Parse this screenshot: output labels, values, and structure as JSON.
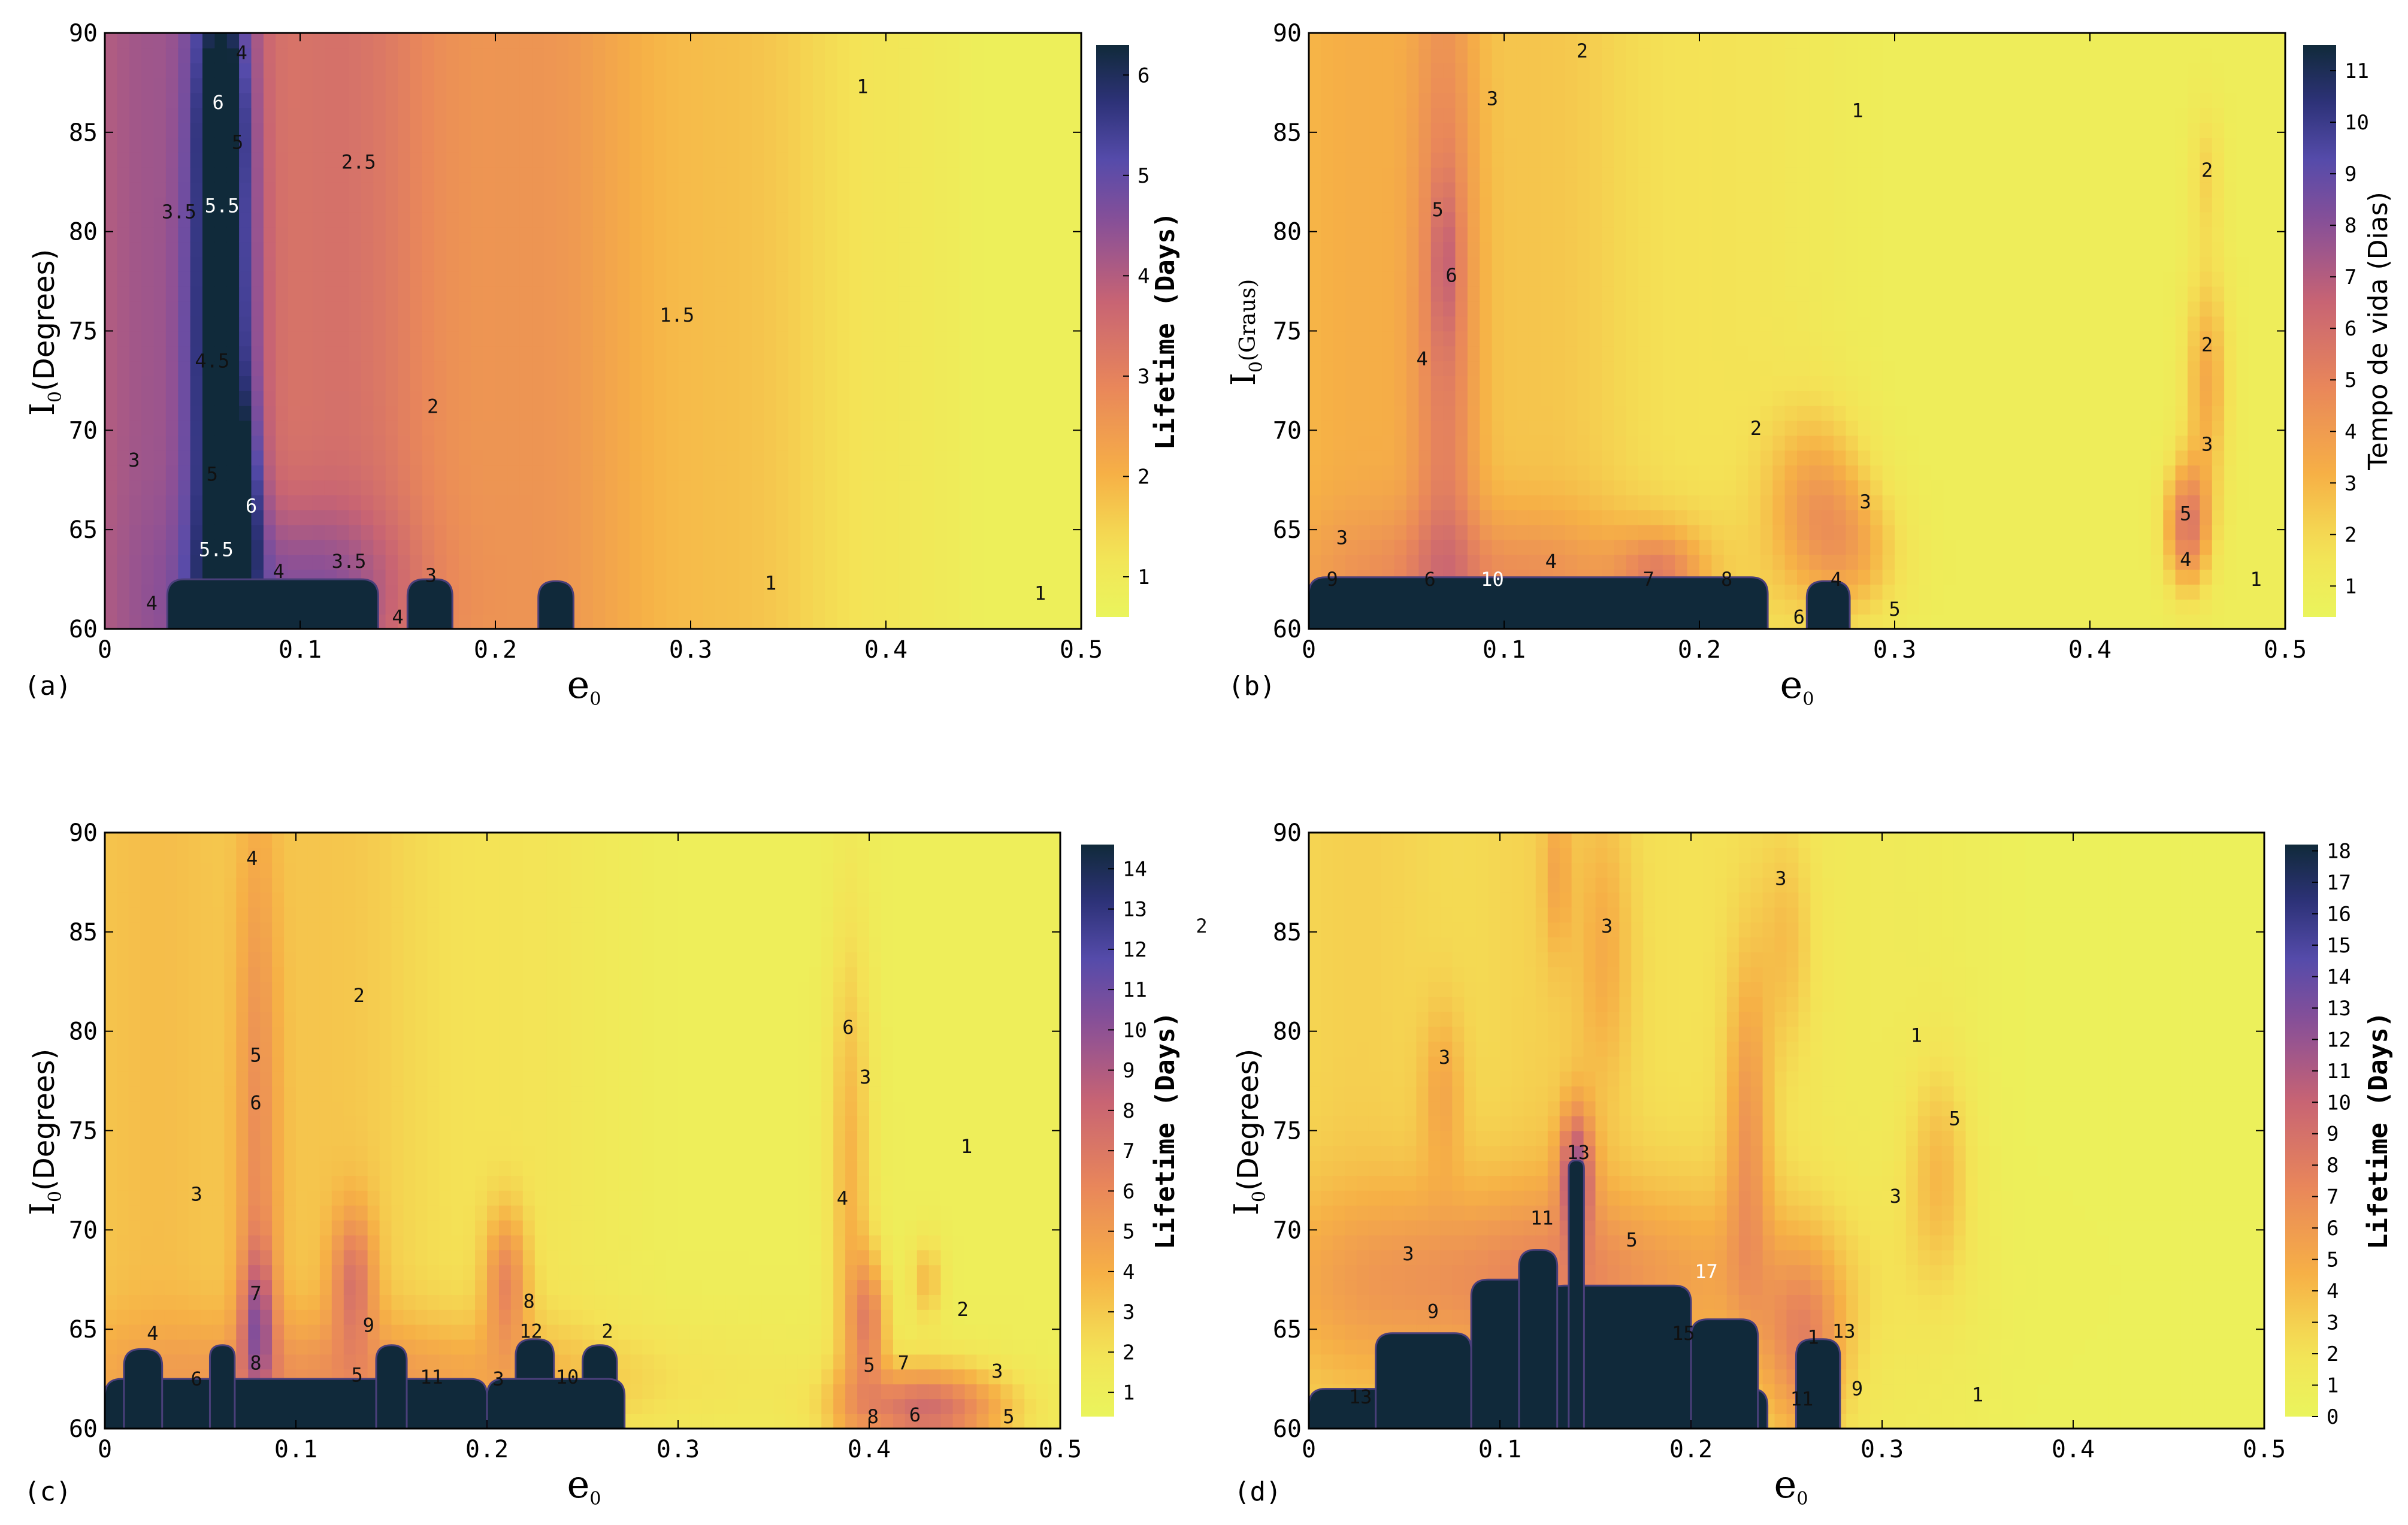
{
  "chart_data": [
    {
      "panel_label": "(a)",
      "type": "heatmap",
      "title": "",
      "xlabel": "e",
      "xlabel_sub": "0",
      "ylabel_prefix": "I",
      "ylabel_sub": "0",
      "ylabel_suffix": "(Degrees)",
      "xlim": [
        0,
        0.5
      ],
      "ylim": [
        60,
        90
      ],
      "x_ticks": [
        0,
        0.1,
        0.2,
        0.3,
        0.4,
        0.5
      ],
      "x_tick_labels": [
        "0",
        "0.1",
        "0.2",
        "0.3",
        "0.4",
        "0.5"
      ],
      "y_ticks": [
        60,
        65,
        70,
        75,
        80,
        85,
        90
      ],
      "y_tick_labels": [
        "60",
        "65",
        "70",
        "75",
        "80",
        "85",
        "90"
      ],
      "colorbar": {
        "label": "Lifetime (Days)",
        "min": 0.6,
        "max": 6.3,
        "ticks": [
          1,
          2,
          3,
          4,
          5,
          6
        ],
        "tick_labels": [
          "1",
          "2",
          "3",
          "4",
          "5",
          "6"
        ]
      },
      "lobes": [
        {
          "x": 0.06,
          "y": 75,
          "sx": 0.012,
          "sy": 20,
          "v": 3.2
        },
        {
          "x": 0.06,
          "y": 85.5,
          "sx": 0.006,
          "sy": 2.4,
          "v": 2.2
        },
        {
          "x": 0.07,
          "y": 66,
          "sx": 0.006,
          "sy": 3.5,
          "v": 2.2
        },
        {
          "x": 0.1,
          "y": 62,
          "sx": 0.04,
          "sy": 3,
          "v": 1.2
        }
      ],
      "base": {
        "left": 4.0,
        "right": 0.8,
        "slope_start": 0.02,
        "slope_end": 0.45
      },
      "black_regions": [
        {
          "x0": 0.032,
          "x1": 0.14,
          "ytop": 62.5
        },
        {
          "x0": 0.155,
          "x1": 0.178,
          "ytop": 62.5
        },
        {
          "x0": 0.222,
          "x1": 0.24,
          "ytop": 62.4
        }
      ],
      "contour_labels": [
        {
          "x": 0.07,
          "y": 89,
          "text": "4"
        },
        {
          "x": 0.058,
          "y": 86.5,
          "text": "6"
        },
        {
          "x": 0.068,
          "y": 84.5,
          "text": "5"
        },
        {
          "x": 0.038,
          "y": 81,
          "text": "3.5"
        },
        {
          "x": 0.06,
          "y": 81.3,
          "text": "5.5"
        },
        {
          "x": 0.13,
          "y": 83.5,
          "text": "2.5"
        },
        {
          "x": 0.055,
          "y": 73.5,
          "text": "4.5"
        },
        {
          "x": 0.055,
          "y": 67.8,
          "text": "5"
        },
        {
          "x": 0.075,
          "y": 66.2,
          "text": "6"
        },
        {
          "x": 0.057,
          "y": 64,
          "text": "5.5"
        },
        {
          "x": 0.015,
          "y": 68.5,
          "text": "3"
        },
        {
          "x": 0.024,
          "y": 61.3,
          "text": "4"
        },
        {
          "x": 0.089,
          "y": 62.9,
          "text": "4"
        },
        {
          "x": 0.125,
          "y": 63.4,
          "text": "3.5"
        },
        {
          "x": 0.167,
          "y": 62.7,
          "text": "3"
        },
        {
          "x": 0.15,
          "y": 60.6,
          "text": "4"
        },
        {
          "x": 0.168,
          "y": 71.2,
          "text": "2"
        },
        {
          "x": 0.293,
          "y": 75.8,
          "text": "1.5"
        },
        {
          "x": 0.388,
          "y": 87.3,
          "text": "1"
        },
        {
          "x": 0.341,
          "y": 62.3,
          "text": "1"
        },
        {
          "x": 0.479,
          "y": 61.8,
          "text": "1"
        }
      ]
    },
    {
      "panel_label": "(b)",
      "type": "heatmap",
      "title": "",
      "xlabel": "e",
      "xlabel_sub": "0",
      "ylabel_prefix": "I",
      "ylabel_sub": "0",
      "ylabel_suffix": "(Graus)",
      "xlim": [
        0,
        0.5
      ],
      "ylim": [
        60,
        90
      ],
      "x_ticks": [
        0,
        0.1,
        0.2,
        0.3,
        0.4,
        0.5
      ],
      "x_tick_labels": [
        "0",
        "0.1",
        "0.2",
        "0.3",
        "0.4",
        "0.5"
      ],
      "y_ticks": [
        60,
        65,
        70,
        75,
        80,
        85,
        90
      ],
      "y_tick_labels": [
        "60",
        "65",
        "70",
        "75",
        "80",
        "85",
        "90"
      ],
      "colorbar": {
        "label": "Tempo de vida (Dias)",
        "min": 0.4,
        "max": 11.5,
        "ticks": [
          1,
          2,
          3,
          4,
          5,
          6,
          7,
          8,
          9,
          10,
          11
        ],
        "tick_labels": [
          "1",
          "2",
          "3",
          "4",
          "5",
          "6",
          "7",
          "8",
          "9",
          "10",
          "11"
        ]
      },
      "lobes": [
        {
          "x": 0.07,
          "y": 75,
          "sx": 0.012,
          "sy": 16,
          "v": 2.6
        },
        {
          "x": 0.07,
          "y": 78.5,
          "sx": 0.005,
          "sy": 2.8,
          "v": 1.5
        },
        {
          "x": 0.26,
          "y": 66.5,
          "sx": 0.018,
          "sy": 3.2,
          "v": 2.5
        },
        {
          "x": 0.28,
          "y": 63.8,
          "sx": 0.018,
          "sy": 2.4,
          "v": 1.8
        },
        {
          "x": 0.18,
          "y": 62.8,
          "sx": 0.015,
          "sy": 1.5,
          "v": 2.5
        },
        {
          "x": 0.46,
          "y": 72.5,
          "sx": 0.008,
          "sy": 4,
          "v": 2.5
        },
        {
          "x": 0.45,
          "y": 65.2,
          "sx": 0.008,
          "sy": 2.2,
          "v": 4.5
        },
        {
          "x": 0.46,
          "y": 83,
          "sx": 0.006,
          "sy": 2.5,
          "v": 1.2
        },
        {
          "x": 0.1,
          "y": 62.5,
          "sx": 0.07,
          "sy": 2.5,
          "v": 2.0
        }
      ],
      "base": {
        "left": 3.0,
        "right": 0.9,
        "slope_start": 0.05,
        "slope_end": 0.3
      },
      "black_regions": [
        {
          "x0": 0.0,
          "x1": 0.235,
          "ytop": 62.6
        },
        {
          "x0": 0.255,
          "x1": 0.277,
          "ytop": 62.4
        }
      ],
      "contour_labels": [
        {
          "x": 0.14,
          "y": 89.1,
          "text": "2"
        },
        {
          "x": 0.094,
          "y": 86.7,
          "text": "3"
        },
        {
          "x": 0.281,
          "y": 86.1,
          "text": "1"
        },
        {
          "x": 0.066,
          "y": 81.1,
          "text": "5"
        },
        {
          "x": 0.073,
          "y": 77.8,
          "text": "6"
        },
        {
          "x": 0.058,
          "y": 73.6,
          "text": "4"
        },
        {
          "x": 0.46,
          "y": 83.1,
          "text": "2"
        },
        {
          "x": 0.46,
          "y": 74.3,
          "text": "2"
        },
        {
          "x": 0.229,
          "y": 70.1,
          "text": "2"
        },
        {
          "x": 0.46,
          "y": 69.3,
          "text": "3"
        },
        {
          "x": 0.285,
          "y": 66.4,
          "text": "3"
        },
        {
          "x": 0.449,
          "y": 65.8,
          "text": "5"
        },
        {
          "x": 0.449,
          "y": 63.5,
          "text": "4"
        },
        {
          "x": 0.017,
          "y": 64.6,
          "text": "3"
        },
        {
          "x": 0.012,
          "y": 62.5,
          "text": "9"
        },
        {
          "x": 0.062,
          "y": 62.5,
          "text": "6"
        },
        {
          "x": 0.094,
          "y": 62.5,
          "text": "10"
        },
        {
          "x": 0.124,
          "y": 63.4,
          "text": "4"
        },
        {
          "x": 0.174,
          "y": 62.5,
          "text": "7"
        },
        {
          "x": 0.214,
          "y": 62.5,
          "text": "8"
        },
        {
          "x": 0.27,
          "y": 62.5,
          "text": "4"
        },
        {
          "x": 0.251,
          "y": 60.6,
          "text": "6"
        },
        {
          "x": 0.3,
          "y": 61,
          "text": "5"
        },
        {
          "x": 0.485,
          "y": 62.5,
          "text": "1"
        }
      ]
    },
    {
      "panel_label": "(c)",
      "type": "heatmap",
      "title": "",
      "xlabel": "e",
      "xlabel_sub": "0",
      "ylabel_prefix": "I",
      "ylabel_sub": "0",
      "ylabel_suffix": "(Degrees)",
      "xlim": [
        0,
        0.5
      ],
      "ylim": [
        60,
        90
      ],
      "x_ticks": [
        0,
        0.1,
        0.2,
        0.3,
        0.4,
        0.5
      ],
      "x_tick_labels": [
        "0",
        "0.1",
        "0.2",
        "0.3",
        "0.4",
        "0.5"
      ],
      "y_ticks": [
        60,
        65,
        70,
        75,
        80,
        85,
        90
      ],
      "y_tick_labels": [
        "60",
        "65",
        "70",
        "75",
        "80",
        "85",
        "90"
      ],
      "colorbar": {
        "label": "Lifetime (Days)",
        "min": 0.4,
        "max": 14.6,
        "ticks": [
          1,
          2,
          3,
          4,
          5,
          6,
          7,
          8,
          9,
          10,
          11,
          12,
          13,
          14
        ],
        "tick_labels": [
          "1",
          "2",
          "3",
          "4",
          "5",
          "6",
          "7",
          "8",
          "9",
          "10",
          "11",
          "12",
          "13",
          "14"
        ]
      },
      "lobes": [
        {
          "x": 0.08,
          "y": 74,
          "sx": 0.008,
          "sy": 12,
          "v": 2.8
        },
        {
          "x": 0.08,
          "y": 65.5,
          "sx": 0.006,
          "sy": 2.5,
          "v": 4.5
        },
        {
          "x": 0.13,
          "y": 67.5,
          "sx": 0.008,
          "sy": 2.5,
          "v": 4
        },
        {
          "x": 0.21,
          "y": 67.5,
          "sx": 0.008,
          "sy": 2.5,
          "v": 4
        },
        {
          "x": 0.39,
          "y": 73,
          "sx": 0.008,
          "sy": 9,
          "v": 2.8
        },
        {
          "x": 0.4,
          "y": 65.5,
          "sx": 0.007,
          "sy": 2.3,
          "v": 4.5
        },
        {
          "x": 0.43,
          "y": 67.5,
          "sx": 0.006,
          "sy": 1.5,
          "v": 2.5
        },
        {
          "x": 0.43,
          "y": 61,
          "sx": 0.03,
          "sy": 1.5,
          "v": 6.5
        },
        {
          "x": 0.15,
          "y": 62.5,
          "sx": 0.12,
          "sy": 2.2,
          "v": 2.5
        }
      ],
      "base": {
        "left": 3.2,
        "right": 1.0,
        "slope_start": 0.1,
        "slope_end": 0.3
      },
      "black_regions": [
        {
          "x0": 0.0,
          "x1": 0.2,
          "ytop": 62.5
        },
        {
          "x0": 0.01,
          "x1": 0.03,
          "ytop": 64.0
        },
        {
          "x0": 0.055,
          "x1": 0.068,
          "ytop": 64.2
        },
        {
          "x0": 0.142,
          "x1": 0.158,
          "ytop": 64.2
        },
        {
          "x0": 0.215,
          "x1": 0.235,
          "ytop": 64.5
        },
        {
          "x0": 0.25,
          "x1": 0.268,
          "ytop": 64.2
        },
        {
          "x0": 0.2,
          "x1": 0.272,
          "ytop": 62.5
        }
      ],
      "contour_labels": [
        {
          "x": 0.077,
          "y": 88.7,
          "text": "4"
        },
        {
          "x": 0.574,
          "y": 85.3,
          "text": "2"
        },
        {
          "x": 0.133,
          "y": 81.8,
          "text": "2"
        },
        {
          "x": 0.079,
          "y": 78.8,
          "text": "5"
        },
        {
          "x": 0.079,
          "y": 76.4,
          "text": "6"
        },
        {
          "x": 0.389,
          "y": 80.2,
          "text": "6"
        },
        {
          "x": 0.398,
          "y": 77.7,
          "text": "3"
        },
        {
          "x": 0.451,
          "y": 74.2,
          "text": "1"
        },
        {
          "x": 0.048,
          "y": 71.8,
          "text": "3"
        },
        {
          "x": 0.386,
          "y": 71.6,
          "text": "4"
        },
        {
          "x": 0.079,
          "y": 66.8,
          "text": "7"
        },
        {
          "x": 0.138,
          "y": 65.2,
          "text": "9"
        },
        {
          "x": 0.222,
          "y": 66.4,
          "text": "8"
        },
        {
          "x": 0.449,
          "y": 66,
          "text": "2"
        },
        {
          "x": 0.025,
          "y": 64.8,
          "text": "4"
        },
        {
          "x": 0.223,
          "y": 64.9,
          "text": "12"
        },
        {
          "x": 0.263,
          "y": 64.9,
          "text": "2"
        },
        {
          "x": 0.079,
          "y": 63.3,
          "text": "8"
        },
        {
          "x": 0.048,
          "y": 62.5,
          "text": "6"
        },
        {
          "x": 0.132,
          "y": 62.7,
          "text": "5"
        },
        {
          "x": 0.171,
          "y": 62.6,
          "text": "11"
        },
        {
          "x": 0.206,
          "y": 62.5,
          "text": "3"
        },
        {
          "x": 0.242,
          "y": 62.6,
          "text": "10"
        },
        {
          "x": 0.4,
          "y": 63.2,
          "text": "5"
        },
        {
          "x": 0.418,
          "y": 63.3,
          "text": "7"
        },
        {
          "x": 0.467,
          "y": 62.9,
          "text": "3"
        },
        {
          "x": 0.402,
          "y": 60.6,
          "text": "8"
        },
        {
          "x": 0.424,
          "y": 60.7,
          "text": "6"
        },
        {
          "x": 0.473,
          "y": 60.6,
          "text": "5"
        }
      ]
    },
    {
      "panel_label": "(d)",
      "type": "heatmap",
      "title": "",
      "xlabel": "e",
      "xlabel_sub": "0",
      "ylabel_prefix": "I",
      "ylabel_sub": "0",
      "ylabel_suffix": "(Degrees)",
      "xlim": [
        0,
        0.5
      ],
      "ylim": [
        60,
        90
      ],
      "x_ticks": [
        0,
        0.1,
        0.2,
        0.3,
        0.4,
        0.5
      ],
      "x_tick_labels": [
        "0",
        "0.1",
        "0.2",
        "0.3",
        "0.4",
        "0.5"
      ],
      "y_ticks": [
        60,
        65,
        70,
        75,
        80,
        85,
        90
      ],
      "y_tick_labels": [
        "60",
        "65",
        "70",
        "75",
        "80",
        "85",
        "90"
      ],
      "colorbar": {
        "label": "Lifetime (Days)",
        "min": 0,
        "max": 18.2,
        "ticks": [
          0,
          1,
          2,
          3,
          4,
          5,
          6,
          7,
          8,
          9,
          10,
          11,
          12,
          13,
          14,
          15,
          16,
          17,
          18
        ],
        "tick_labels": [
          "0",
          "1",
          "2",
          "3",
          "4",
          "5",
          "6",
          "7",
          "8",
          "9",
          "10",
          "11",
          "12",
          "13",
          "14",
          "15",
          "16",
          "17",
          "18"
        ]
      },
      "lobes": [
        {
          "x": 0.12,
          "y": 67.5,
          "sx": 0.1,
          "sy": 3.5,
          "v": 4.5
        },
        {
          "x": 0.14,
          "y": 73,
          "sx": 0.006,
          "sy": 2.2,
          "v": 8
        },
        {
          "x": 0.23,
          "y": 75,
          "sx": 0.008,
          "sy": 6,
          "v": 4
        },
        {
          "x": 0.26,
          "y": 64,
          "sx": 0.015,
          "sy": 3.5,
          "v": 5
        },
        {
          "x": 0.33,
          "y": 73,
          "sx": 0.012,
          "sy": 4,
          "v": 3
        },
        {
          "x": 0.07,
          "y": 77,
          "sx": 0.008,
          "sy": 3,
          "v": 2.5
        },
        {
          "x": 0.155,
          "y": 84,
          "sx": 0.01,
          "sy": 5,
          "v": 2
        },
        {
          "x": 0.25,
          "y": 84.5,
          "sx": 0.01,
          "sy": 4,
          "v": 2
        },
        {
          "x": 0.13,
          "y": 88,
          "sx": 0.005,
          "sy": 3,
          "v": 2.2
        }
      ],
      "base": {
        "left": 2.8,
        "right": 0.5,
        "slope_start": 0.15,
        "slope_end": 0.38
      },
      "black_regions": [
        {
          "x0": 0.0,
          "x1": 0.24,
          "ytop": 62.0
        },
        {
          "x0": 0.035,
          "x1": 0.085,
          "ytop": 64.8
        },
        {
          "x0": 0.085,
          "x1": 0.125,
          "ytop": 67.5
        },
        {
          "x0": 0.125,
          "x1": 0.2,
          "ytop": 67.2
        },
        {
          "x0": 0.2,
          "x1": 0.235,
          "ytop": 65.5
        },
        {
          "x0": 0.11,
          "x1": 0.13,
          "ytop": 69.0
        },
        {
          "x0": 0.136,
          "x1": 0.144,
          "ytop": 73.5
        },
        {
          "x0": 0.255,
          "x1": 0.278,
          "ytop": 64.5
        }
      ],
      "contour_labels": [
        {
          "x": 0.247,
          "y": 87.7,
          "text": "3"
        },
        {
          "x": 0.156,
          "y": 85.3,
          "text": "3"
        },
        {
          "x": 0.071,
          "y": 78.7,
          "text": "3"
        },
        {
          "x": 0.318,
          "y": 79.8,
          "text": "1"
        },
        {
          "x": 0.338,
          "y": 75.6,
          "text": "5"
        },
        {
          "x": 0.141,
          "y": 73.9,
          "text": "13"
        },
        {
          "x": 0.122,
          "y": 70.6,
          "text": "11"
        },
        {
          "x": 0.307,
          "y": 71.7,
          "text": "3"
        },
        {
          "x": 0.052,
          "y": 68.8,
          "text": "3"
        },
        {
          "x": 0.169,
          "y": 69.5,
          "text": "5"
        },
        {
          "x": 0.208,
          "y": 67.9,
          "text": "17"
        },
        {
          "x": 0.065,
          "y": 65.9,
          "text": "9"
        },
        {
          "x": 0.196,
          "y": 64.8,
          "text": "15"
        },
        {
          "x": 0.264,
          "y": 64.6,
          "text": "1"
        },
        {
          "x": 0.28,
          "y": 64.9,
          "text": "13"
        },
        {
          "x": 0.027,
          "y": 61.6,
          "text": "13"
        },
        {
          "x": 0.258,
          "y": 61.5,
          "text": "11"
        },
        {
          "x": 0.287,
          "y": 62,
          "text": "9"
        },
        {
          "x": 0.35,
          "y": 61.7,
          "text": "1"
        }
      ]
    }
  ]
}
